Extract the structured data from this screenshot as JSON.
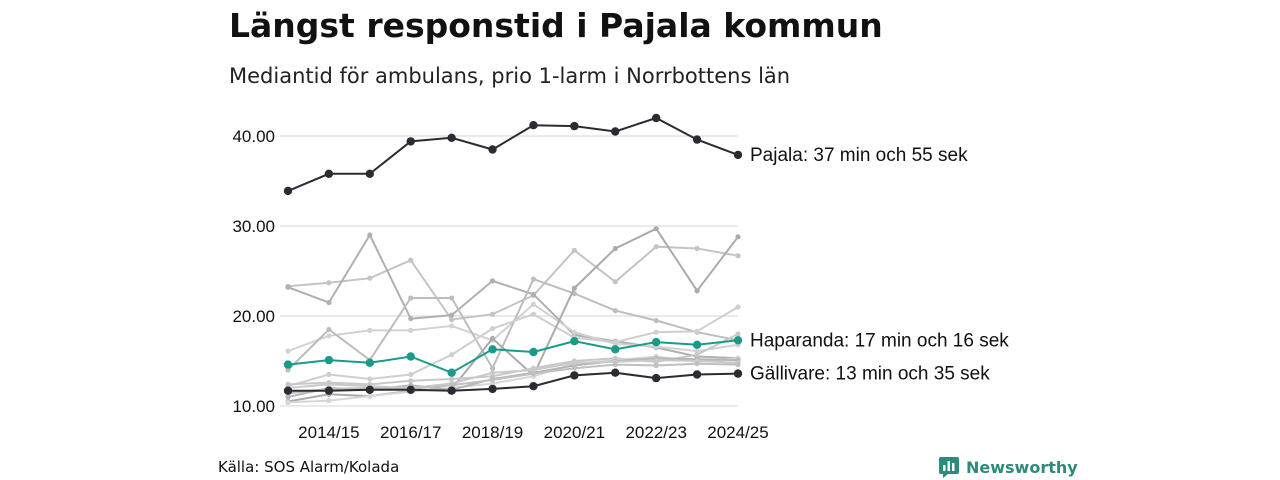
{
  "title": "Längst responstid i Pajala kommun",
  "subtitle": "Mediantid för ambulans, prio 1-larm i Norrbottens län",
  "source": "Källa: SOS Alarm/Kolada",
  "brand": "Newsworthy",
  "colors": {
    "highlight_dark": "#2b2b33",
    "highlight_teal": "#1a9b8a",
    "background_series": [
      "#c4c4c4",
      "#b0b0b0",
      "#d2d2d2",
      "#bdbdbd",
      "#cfcfcf",
      "#ababab",
      "#c8c8c8",
      "#d6d6d6",
      "#b6b6b6",
      "#cacaca",
      "#c0c0c0"
    ],
    "brand": "#2e8a7a",
    "grid": "#e3e3e3"
  },
  "chart_data": {
    "type": "line",
    "title": "Längst responstid i Pajala kommun",
    "subtitle": "Mediantid för ambulans, prio 1-larm i Norrbottens län",
    "xlabel": "",
    "ylabel": "",
    "ylim": [
      10,
      43
    ],
    "yticks": [
      10,
      20,
      30,
      40
    ],
    "ytick_labels": [
      "10.00",
      "20.00",
      "30.00",
      "40.00"
    ],
    "x": [
      "2013/14",
      "2014/15",
      "2015/16",
      "2016/17",
      "2017/18",
      "2018/19",
      "2019/20",
      "2020/21",
      "2021/22",
      "2022/23",
      "2023/24",
      "2024/25"
    ],
    "xtick_labels": [
      "2014/15",
      "2016/17",
      "2018/19",
      "2020/21",
      "2022/23",
      "2024/25"
    ],
    "grid": true,
    "highlighted": [
      {
        "name": "Pajala",
        "label": "Pajala: 37 min och 55 sek",
        "values": [
          33.9,
          35.8,
          35.8,
          39.4,
          39.8,
          38.5,
          41.2,
          41.1,
          40.5,
          42.0,
          39.6,
          37.9
        ]
      },
      {
        "name": "Haparanda",
        "label": "Haparanda: 17 min och 16 sek",
        "values": [
          14.6,
          15.1,
          14.8,
          15.5,
          13.7,
          16.3,
          16.0,
          17.2,
          16.3,
          17.1,
          16.8,
          17.3
        ]
      },
      {
        "name": "Gällivare",
        "label": "Gällivare: 13 min och 35 sek",
        "values": [
          11.7,
          11.7,
          11.8,
          11.8,
          11.7,
          11.9,
          12.2,
          13.4,
          13.7,
          13.1,
          13.5,
          13.6
        ]
      }
    ],
    "background_series": [
      {
        "values": [
          23.3,
          23.7,
          24.2,
          26.2,
          19.6,
          20.2,
          22.3,
          27.3,
          23.8,
          27.7,
          27.5,
          26.7
        ]
      },
      {
        "values": [
          23.2,
          21.5,
          29.0,
          19.7,
          20.1,
          23.9,
          22.4,
          17.9,
          17.2,
          16.5,
          15.5,
          15.3
        ]
      },
      {
        "values": [
          16.1,
          17.8,
          18.4,
          18.4,
          18.9,
          17.3,
          21.3,
          18.2,
          16.9,
          16.6,
          16.1,
          16.8
        ]
      },
      {
        "values": [
          14.0,
          18.5,
          15.1,
          22.0,
          22.0,
          14.2,
          24.1,
          22.5,
          20.6,
          19.5,
          18.2,
          17.3
        ]
      },
      {
        "values": [
          12.2,
          13.5,
          13.0,
          13.5,
          15.7,
          18.6,
          20.2,
          17.6,
          17.1,
          18.2,
          18.3,
          21.0
        ]
      },
      {
        "values": [
          10.5,
          11.3,
          11.1,
          11.7,
          11.9,
          17.5,
          13.4,
          23.1,
          27.5,
          29.7,
          22.8,
          28.8
        ]
      },
      {
        "values": [
          12.4,
          12.6,
          12.4,
          12.8,
          13.0,
          13.3,
          14.2,
          15.0,
          15.3,
          14.9,
          15.7,
          18.0
        ]
      },
      {
        "values": [
          10.4,
          10.6,
          11.1,
          11.6,
          12.0,
          12.5,
          13.3,
          14.7,
          15.1,
          15.5,
          14.9,
          15.3
        ]
      },
      {
        "values": [
          11.0,
          12.0,
          11.8,
          12.3,
          11.8,
          13.0,
          13.7,
          14.5,
          15.0,
          15.3,
          15.2,
          15.1
        ]
      },
      {
        "values": [
          12.0,
          12.4,
          12.2,
          12.0,
          12.5,
          13.7,
          14.0,
          14.8,
          14.9,
          15.1,
          15.0,
          14.8
        ]
      },
      {
        "values": [
          11.4,
          11.9,
          12.0,
          11.9,
          12.3,
          12.9,
          13.6,
          14.2,
          14.6,
          14.5,
          14.7,
          14.6
        ]
      }
    ]
  }
}
